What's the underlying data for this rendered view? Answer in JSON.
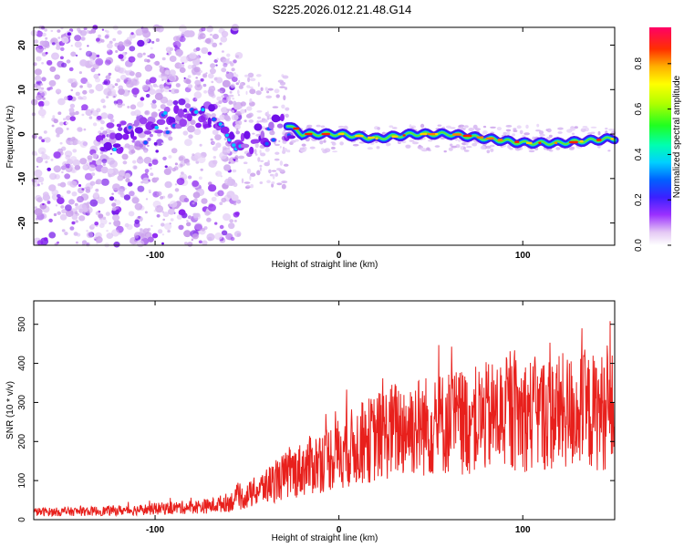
{
  "title": "S225.2026.012.21.48.G14",
  "chart_data": [
    {
      "type": "heatmap",
      "title": "S225.2026.012.21.48.G14",
      "xlabel": "Height of straight line (km)",
      "ylabel": "Frequency (Hz)",
      "xlim": [
        -166,
        150
      ],
      "ylim": [
        -25,
        24
      ],
      "xticks": [
        -100,
        0,
        100
      ],
      "yticks": [
        20,
        10,
        0,
        -10,
        -20
      ],
      "colorbar": {
        "label": "Normalized spectral amplitude",
        "range": [
          0,
          0.96
        ],
        "ticks": [
          0.0,
          0.2,
          0.4,
          0.6,
          0.8
        ]
      },
      "ridge": {
        "description_points_x": [
          -125,
          -110,
          -95,
          -85,
          -78,
          -72,
          -65,
          -55,
          -45,
          -35,
          -28,
          -20,
          0,
          20,
          40,
          60,
          80,
          100,
          120,
          150
        ],
        "frequency_hz": [
          -1,
          0,
          2,
          5,
          4,
          3,
          4,
          -3,
          -1,
          1,
          2,
          0,
          0,
          -1,
          0,
          0,
          -1,
          -2,
          -2,
          -1
        ]
      }
    },
    {
      "type": "line",
      "xlabel": "Height of straight line (km)",
      "ylabel": "SNR (10 * v/v)",
      "xlim": [
        -166,
        150
      ],
      "ylim": [
        0,
        560
      ],
      "xticks": [
        -100,
        0,
        100
      ],
      "yticks": [
        0,
        100,
        200,
        300,
        400,
        500
      ],
      "series": [
        {
          "name": "SNR",
          "color": "#e8201c",
          "x": [
            -166,
            -150,
            -130,
            -110,
            -90,
            -70,
            -60,
            -50,
            -40,
            -30,
            -20,
            -10,
            0,
            10,
            20,
            30,
            40,
            50,
            60,
            70,
            80,
            90,
            100,
            110,
            120,
            130,
            140,
            150
          ],
          "y": [
            20,
            20,
            22,
            25,
            30,
            35,
            45,
            60,
            85,
            110,
            130,
            150,
            170,
            190,
            210,
            230,
            240,
            240,
            250,
            250,
            260,
            270,
            270,
            270,
            275,
            275,
            275,
            280
          ]
        }
      ]
    }
  ],
  "colors": {
    "snr_line": "#e8201c",
    "frame": "#000000"
  }
}
